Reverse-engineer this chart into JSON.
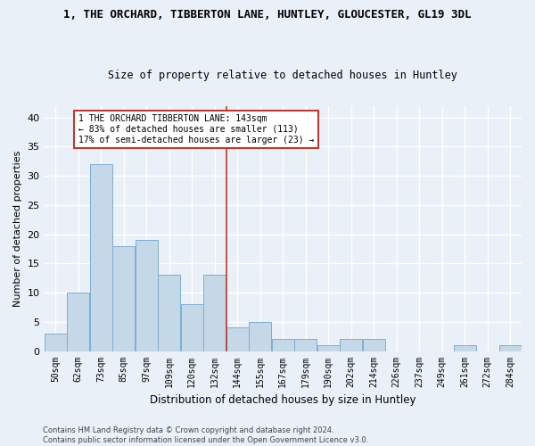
{
  "title": "1, THE ORCHARD, TIBBERTON LANE, HUNTLEY, GLOUCESTER, GL19 3DL",
  "subtitle": "Size of property relative to detached houses in Huntley",
  "xlabel": "Distribution of detached houses by size in Huntley",
  "ylabel": "Number of detached properties",
  "categories": [
    "50sqm",
    "62sqm",
    "73sqm",
    "85sqm",
    "97sqm",
    "109sqm",
    "120sqm",
    "132sqm",
    "144sqm",
    "155sqm",
    "167sqm",
    "179sqm",
    "190sqm",
    "202sqm",
    "214sqm",
    "226sqm",
    "237sqm",
    "249sqm",
    "261sqm",
    "272sqm",
    "284sqm"
  ],
  "values": [
    3,
    10,
    32,
    18,
    19,
    13,
    8,
    13,
    4,
    5,
    2,
    2,
    1,
    2,
    2,
    0,
    0,
    0,
    1,
    0,
    1
  ],
  "bar_color": "#c5d8e8",
  "bar_edge_color": "#7aafd4",
  "highlight_index": 8,
  "highlight_line_color": "#c0392b",
  "highlight_box_color": "#c0392b",
  "annotation_line1": "1 THE ORCHARD TIBBERTON LANE: 143sqm",
  "annotation_line2": "← 83% of detached houses are smaller (113)",
  "annotation_line3": "17% of semi-detached houses are larger (23) →",
  "ylim": [
    0,
    42
  ],
  "yticks": [
    0,
    5,
    10,
    15,
    20,
    25,
    30,
    35,
    40
  ],
  "background_color": "#eaf0f8",
  "grid_color": "#ffffff",
  "footer1": "Contains HM Land Registry data © Crown copyright and database right 2024.",
  "footer2": "Contains public sector information licensed under the Open Government Licence v3.0."
}
